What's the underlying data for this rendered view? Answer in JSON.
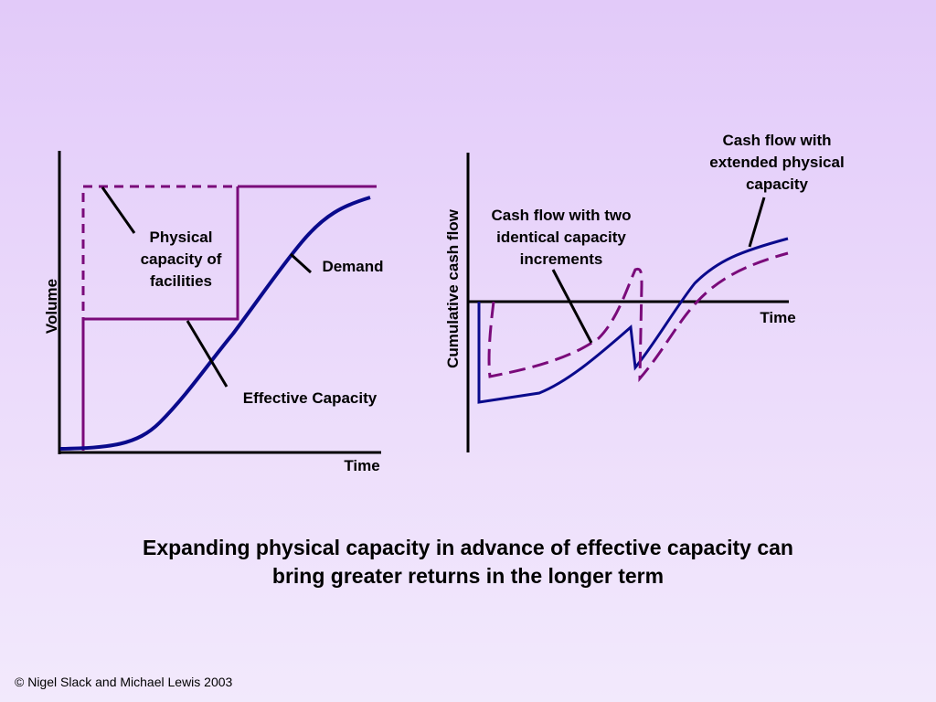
{
  "left_diagram": {
    "axis_y_label": "Volume",
    "axis_x_label": "Time",
    "label_physical": "Physical capacity of facilities",
    "label_demand": "Demand",
    "label_effective": "Effective Capacity"
  },
  "right_diagram": {
    "axis_y_label": "Cumulative cash flow",
    "axis_x_label": "Time",
    "label_two_increments": "Cash flow with two identical capacity increments",
    "label_extended": "Cash flow with extended physical capacity"
  },
  "caption": "Expanding physical capacity in advance of effective capacity can bring greater returns in the longer term",
  "copyright": "© Nigel Slack and Michael Lewis 2003",
  "colors": {
    "demand_line": "#0a0a8c",
    "capacity_line": "#7a0a7a",
    "axis": "#000000"
  }
}
